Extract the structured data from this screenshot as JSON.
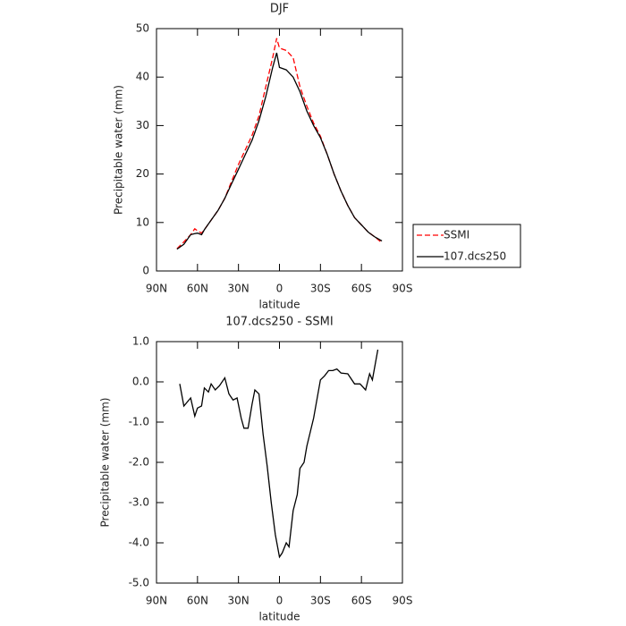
{
  "chart_data": [
    {
      "type": "line",
      "title": "DJF",
      "xlabel": "latitude",
      "ylabel": "Precipitable water  (mm)",
      "x": [
        75,
        70,
        65,
        62,
        60,
        57,
        55,
        50,
        45,
        40,
        35,
        30,
        25,
        20,
        15,
        10,
        5,
        2,
        0,
        -5,
        -10,
        -15,
        -20,
        -25,
        -30,
        -35,
        -40,
        -45,
        -50,
        -55,
        -60,
        -65,
        -70,
        -75
      ],
      "series": [
        {
          "name": "SSMI",
          "color": "#ff0000",
          "style": "dashed",
          "values": [
            4.6,
            6,
            7.5,
            8.7,
            8.3,
            7.8,
            8.5,
            10.5,
            12.5,
            15,
            18.5,
            22,
            25,
            28,
            32,
            38,
            44,
            48,
            46,
            45.5,
            44,
            38,
            34,
            30.5,
            27.8,
            24,
            20,
            16.5,
            13.5,
            11,
            9.5,
            8,
            7,
            5.8
          ]
        },
        {
          "name": "107.dcs250",
          "color": "#000000",
          "style": "solid",
          "values": [
            4.5,
            5.5,
            7.5,
            7.7,
            7.8,
            7.5,
            8.5,
            10.5,
            12.5,
            15,
            18,
            21,
            24,
            27,
            31,
            36,
            42,
            45,
            42,
            41.5,
            40,
            37,
            33,
            30,
            27.5,
            24,
            20,
            16.5,
            13.5,
            11,
            9.5,
            8,
            7,
            6.2
          ]
        }
      ],
      "xlim": [
        90,
        -90
      ],
      "xticks": [
        {
          "value": 90,
          "label": "90N"
        },
        {
          "value": 60,
          "label": "60N"
        },
        {
          "value": 30,
          "label": "30N"
        },
        0,
        {
          "value": -30,
          "label": "30S"
        },
        {
          "value": -60,
          "label": "60S"
        },
        {
          "value": -90,
          "label": "90S"
        }
      ],
      "ylim": [
        0,
        50
      ],
      "yticks": [
        0,
        10,
        20,
        30,
        40,
        50
      ],
      "legend": "right"
    },
    {
      "type": "line",
      "title": "107.dcs250 - SSMI",
      "xlabel": "latitude",
      "ylabel": "Precipitable water  (mm)",
      "x": [
        73,
        70,
        65,
        62,
        60,
        57,
        55,
        52,
        50,
        47,
        44,
        40,
        37,
        34,
        31,
        28,
        26,
        23,
        20,
        18,
        15,
        12,
        9,
        6,
        3,
        0,
        -2,
        -5,
        -7,
        -10,
        -13,
        -15,
        -18,
        -20,
        -25,
        -30,
        -33,
        -36,
        -39,
        -42,
        -45,
        -50,
        -55,
        -59,
        -63,
        -66,
        -68,
        -72
      ],
      "values": [
        -0.05,
        -0.6,
        -0.4,
        -0.85,
        -0.65,
        -0.6,
        -0.15,
        -0.25,
        -0.05,
        -0.2,
        -0.1,
        0.1,
        -0.3,
        -0.45,
        -0.4,
        -0.9,
        -1.15,
        -1.15,
        -0.55,
        -0.2,
        -0.3,
        -1.3,
        -2.1,
        -3.0,
        -3.8,
        -4.35,
        -4.25,
        -4.0,
        -4.1,
        -3.2,
        -2.8,
        -2.15,
        -2.0,
        -1.6,
        -0.9,
        0.05,
        0.15,
        0.28,
        0.28,
        0.32,
        0.22,
        0.2,
        -0.05,
        -0.05,
        -0.2,
        0.2,
        0.05,
        0.8
      ],
      "color": "#000000",
      "xlim": [
        90,
        -90
      ],
      "xticks": [
        {
          "value": 90,
          "label": "90N"
        },
        {
          "value": 60,
          "label": "60N"
        },
        {
          "value": 30,
          "label": "30N"
        },
        0,
        {
          "value": -30,
          "label": "30S"
        },
        {
          "value": -60,
          "label": "60S"
        },
        {
          "value": -90,
          "label": "90S"
        }
      ],
      "ylim": [
        -5,
        1
      ],
      "yticks": [
        {
          "value": 1,
          "label": "1.0"
        },
        {
          "value": 0,
          "label": "0.0"
        },
        {
          "value": -1,
          "label": "-1.0"
        },
        {
          "value": -2,
          "label": "-2.0"
        },
        {
          "value": -3,
          "label": "-3.0"
        },
        {
          "value": -4,
          "label": "-4.0"
        },
        {
          "value": -5,
          "label": "-5.0"
        }
      ]
    }
  ]
}
